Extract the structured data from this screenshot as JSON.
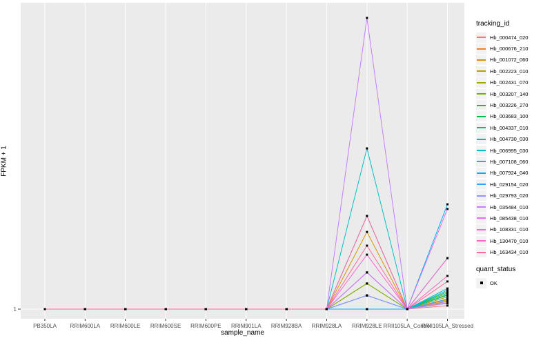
{
  "chart_data": {
    "type": "line",
    "title": "",
    "xlabel": "sample_name",
    "ylabel": "FPKM + 1",
    "y_tick_labels": [
      "1"
    ],
    "value_encoding": "values are fractions of panel height above the y=1 baseline; only the '1' tick is labeled on the log-like FPKM+1 axis",
    "categories": [
      "PB350LA",
      "RRIM600LA",
      "RRIM600LE",
      "RRIM600SE",
      "RRIM600PE",
      "RRIM901LA",
      "RRIM928BA",
      "RRIM928LA",
      "RRIM928LE",
      "RRII105LA_Control",
      "RRII105LA_Stressed"
    ],
    "panel_bg": "#EBEBEB",
    "grid_color": "#FFFFFF",
    "tick_color": "#333333",
    "tick_label_color": "#4D4D4D",
    "point_color": "#000000",
    "legend_position": "right",
    "series": [
      {
        "name": "Hb_000474_020",
        "color": "#F8766D",
        "values": [
          0,
          0,
          0,
          0,
          0,
          0,
          0,
          0,
          0,
          0,
          0.012
        ]
      },
      {
        "name": "Hb_000676_210",
        "color": "#EA8331",
        "values": [
          0,
          0,
          0,
          0,
          0,
          0,
          0,
          0,
          0,
          0,
          0.022
        ]
      },
      {
        "name": "Hb_001072_060",
        "color": "#D89000",
        "values": [
          0,
          0,
          0,
          0,
          0,
          0,
          0,
          0,
          0.265,
          0,
          0.032
        ]
      },
      {
        "name": "Hb_002223_010",
        "color": "#C09B00",
        "values": [
          0,
          0,
          0,
          0,
          0,
          0,
          0,
          0,
          0,
          0,
          0.042
        ]
      },
      {
        "name": "Hb_002431_070",
        "color": "#A3A500",
        "values": [
          0,
          0,
          0,
          0,
          0,
          0,
          0,
          0,
          0.088,
          0,
          0.028
        ]
      },
      {
        "name": "Hb_003207_140",
        "color": "#7CAE00",
        "values": [
          0,
          0,
          0,
          0,
          0,
          0,
          0,
          0,
          0.088,
          0,
          0.05
        ]
      },
      {
        "name": "Hb_003226_270",
        "color": "#39B600",
        "values": [
          0,
          0,
          0,
          0,
          0,
          0,
          0,
          0,
          0.32,
          0,
          0.06
        ]
      },
      {
        "name": "Hb_003683_100",
        "color": "#00BB4E",
        "values": [
          0,
          0,
          0,
          0,
          0,
          0,
          0,
          0,
          0.047,
          0,
          0.175
        ]
      },
      {
        "name": "Hb_004337_010",
        "color": "#00BF7D",
        "values": [
          0,
          0,
          0,
          0,
          0,
          0,
          0,
          0,
          0,
          0,
          0.048
        ]
      },
      {
        "name": "Hb_004730_030",
        "color": "#00C1A3",
        "values": [
          0,
          0,
          0,
          0,
          0,
          0,
          0,
          0,
          0,
          0,
          0.055
        ]
      },
      {
        "name": "Hb_006995_030",
        "color": "#00BFC4",
        "values": [
          0,
          0,
          0,
          0,
          0,
          0,
          0,
          0,
          0.552,
          0,
          0.071
        ]
      },
      {
        "name": "Hb_007108_060",
        "color": "#00BAE0",
        "values": [
          0,
          0,
          0,
          0,
          0,
          0,
          0,
          0,
          0.126,
          0,
          0.065
        ]
      },
      {
        "name": "Hb_007924_040",
        "color": "#00B0F6",
        "values": [
          0,
          0,
          0,
          0,
          0,
          0,
          0,
          0,
          0,
          0,
          0.36
        ]
      },
      {
        "name": "Hb_029154_020",
        "color": "#35A2FF",
        "values": [
          0,
          0,
          0,
          0,
          0,
          0,
          0,
          0,
          0.047,
          0,
          0.035
        ]
      },
      {
        "name": "Hb_029793_020",
        "color": "#9590FF",
        "values": [
          0,
          0,
          0,
          0,
          0,
          0,
          0,
          0,
          0.047,
          0,
          0.02
        ]
      },
      {
        "name": "Hb_035484_010",
        "color": "#C77CFF",
        "values": [
          0,
          0,
          0,
          0,
          0,
          0,
          0,
          0,
          1.0,
          0,
          0.026
        ]
      },
      {
        "name": "Hb_085438_010",
        "color": "#E76BF3",
        "values": [
          0,
          0,
          0,
          0,
          0,
          0,
          0,
          0,
          0.126,
          0,
          0.344
        ]
      },
      {
        "name": "Hb_108331_010",
        "color": "#FA62DB",
        "values": [
          0,
          0,
          0,
          0,
          0,
          0,
          0,
          0,
          0.187,
          0,
          0.175
        ]
      },
      {
        "name": "Hb_130470_010",
        "color": "#FF62BC",
        "values": [
          0,
          0,
          0,
          0,
          0,
          0,
          0,
          0,
          0.32,
          0,
          0.114
        ]
      },
      {
        "name": "Hb_163434_010",
        "color": "#FF6A98",
        "values": [
          0,
          0,
          0,
          0,
          0,
          0,
          0,
          0,
          0.218,
          0,
          0.095
        ]
      }
    ]
  },
  "legend": {
    "tracking_title": "tracking_id",
    "quant_title": "quant_status",
    "quant_items": [
      {
        "label": "OK"
      }
    ]
  }
}
